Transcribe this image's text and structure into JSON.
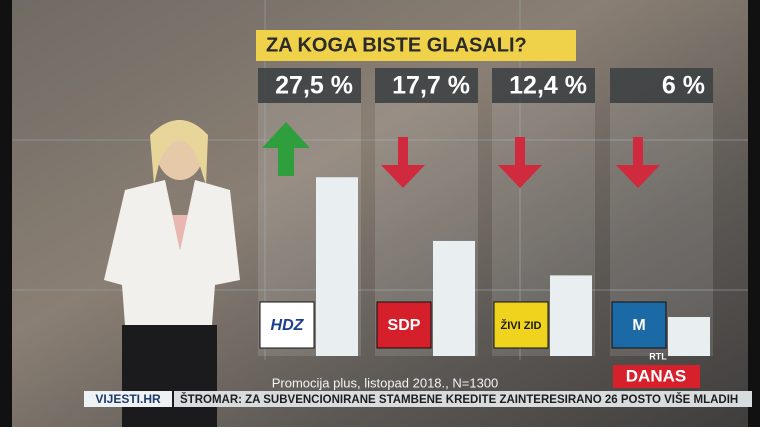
{
  "chart_data": {
    "type": "bar",
    "title": "ZA KOGA BISTE GLASALI?",
    "categories": [
      "HDZ",
      "SDP",
      "ŽIVI ZID",
      "M"
    ],
    "values": [
      27.5,
      17.7,
      12.4,
      6
    ],
    "value_labels": [
      "27,5 %",
      "17,7 %",
      "12,4 %",
      "6 %"
    ],
    "color": "#e9eff1",
    "arrows": [
      "up",
      "down",
      "down",
      "down"
    ],
    "arrow_colors": {
      "up": "#2f9e3c",
      "down": "#cf2a3e"
    },
    "source": "Promocija plus, listopad 2018., N=1300"
  },
  "ticker": {
    "site": "VIJESTI.HR",
    "headline": "ŠTROMAR: ZA SUBVENCIONIRANE STAMBENE KREDITE ZAINTERESIRANO 26 POSTO VIŠE MLADIH"
  },
  "logo": {
    "small": "RTL",
    "big": "DANAS"
  }
}
